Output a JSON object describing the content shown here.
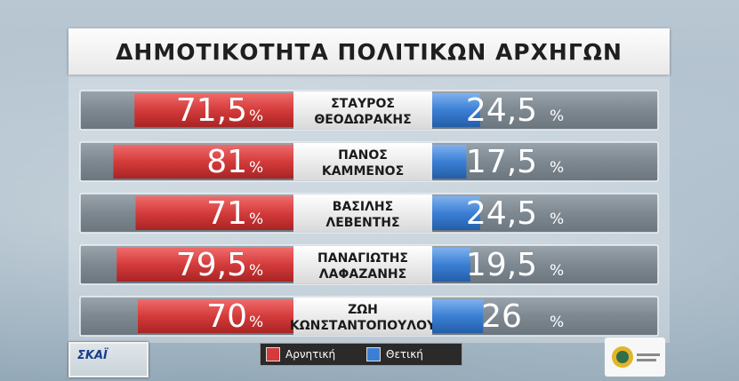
{
  "title": "ΔΗΜΟΤΙΚΟΤΗΤΑ ΠΟΛΙΤΙΚΩΝ ΑΡΧΗΓΩΝ",
  "colors": {
    "negative": "#d43b3b",
    "positive": "#3b7fd4",
    "row": "#7f8a93",
    "label_box": "#f0f0f0"
  },
  "chart_data": {
    "type": "bar",
    "title": "ΔΗΜΟΤΙΚΟΤΗΤΑ ΠΟΛΙΤΙΚΩΝ ΑΡΧΗΓΩΝ",
    "unit": "%",
    "categories": [
      [
        "ΣΤΑΥΡΟΣ",
        "ΘΕΟΔΩΡΑΚΗΣ"
      ],
      [
        "ΠΑΝΟΣ",
        "ΚΑΜΜΕΝΟΣ"
      ],
      [
        "ΒΑΣΙΛΗΣ",
        "ΛΕΒΕΝΤΗΣ"
      ],
      [
        "ΠΑΝΑΓΙΩΤΗΣ",
        "ΛΑΦΑΖΑΝΗΣ"
      ],
      [
        "ΖΩΗ",
        "ΚΩΝΣΤΑΝΤΟΠΟΥΛΟΥ"
      ]
    ],
    "series": [
      {
        "name": "Αρνητική",
        "values": [
          71.5,
          81,
          71,
          79.5,
          70
        ],
        "labels": [
          "71,5",
          "81",
          "71",
          "79,5",
          "70"
        ]
      },
      {
        "name": "Θετική",
        "values": [
          24.5,
          17.5,
          24.5,
          19.5,
          26
        ],
        "labels": [
          "24,5",
          "17,5",
          "24,5",
          "19,5",
          "26"
        ]
      }
    ],
    "ylim": [
      0,
      100
    ],
    "legend": "bottom-center"
  },
  "legend": {
    "negative": "Αρνητική",
    "positive": "Θετική"
  },
  "logos": {
    "channel": "ΣΚΑΪ"
  }
}
